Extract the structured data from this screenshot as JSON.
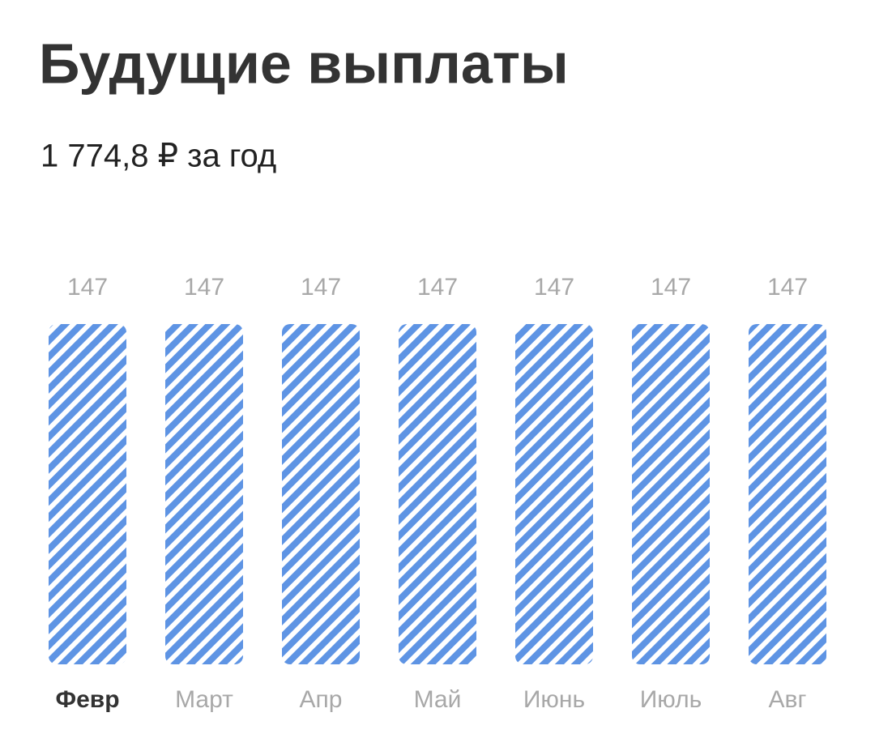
{
  "header": {
    "title": "Будущие выплаты",
    "subtitle": "1 774,8 ₽ за год"
  },
  "chart_data": {
    "type": "bar",
    "categories": [
      "Февр",
      "Март",
      "Апр",
      "Май",
      "Июнь",
      "Июль",
      "Авг"
    ],
    "values": [
      147,
      147,
      147,
      147,
      147,
      147,
      147
    ],
    "color": "#5e94e4",
    "selected": 0
  }
}
